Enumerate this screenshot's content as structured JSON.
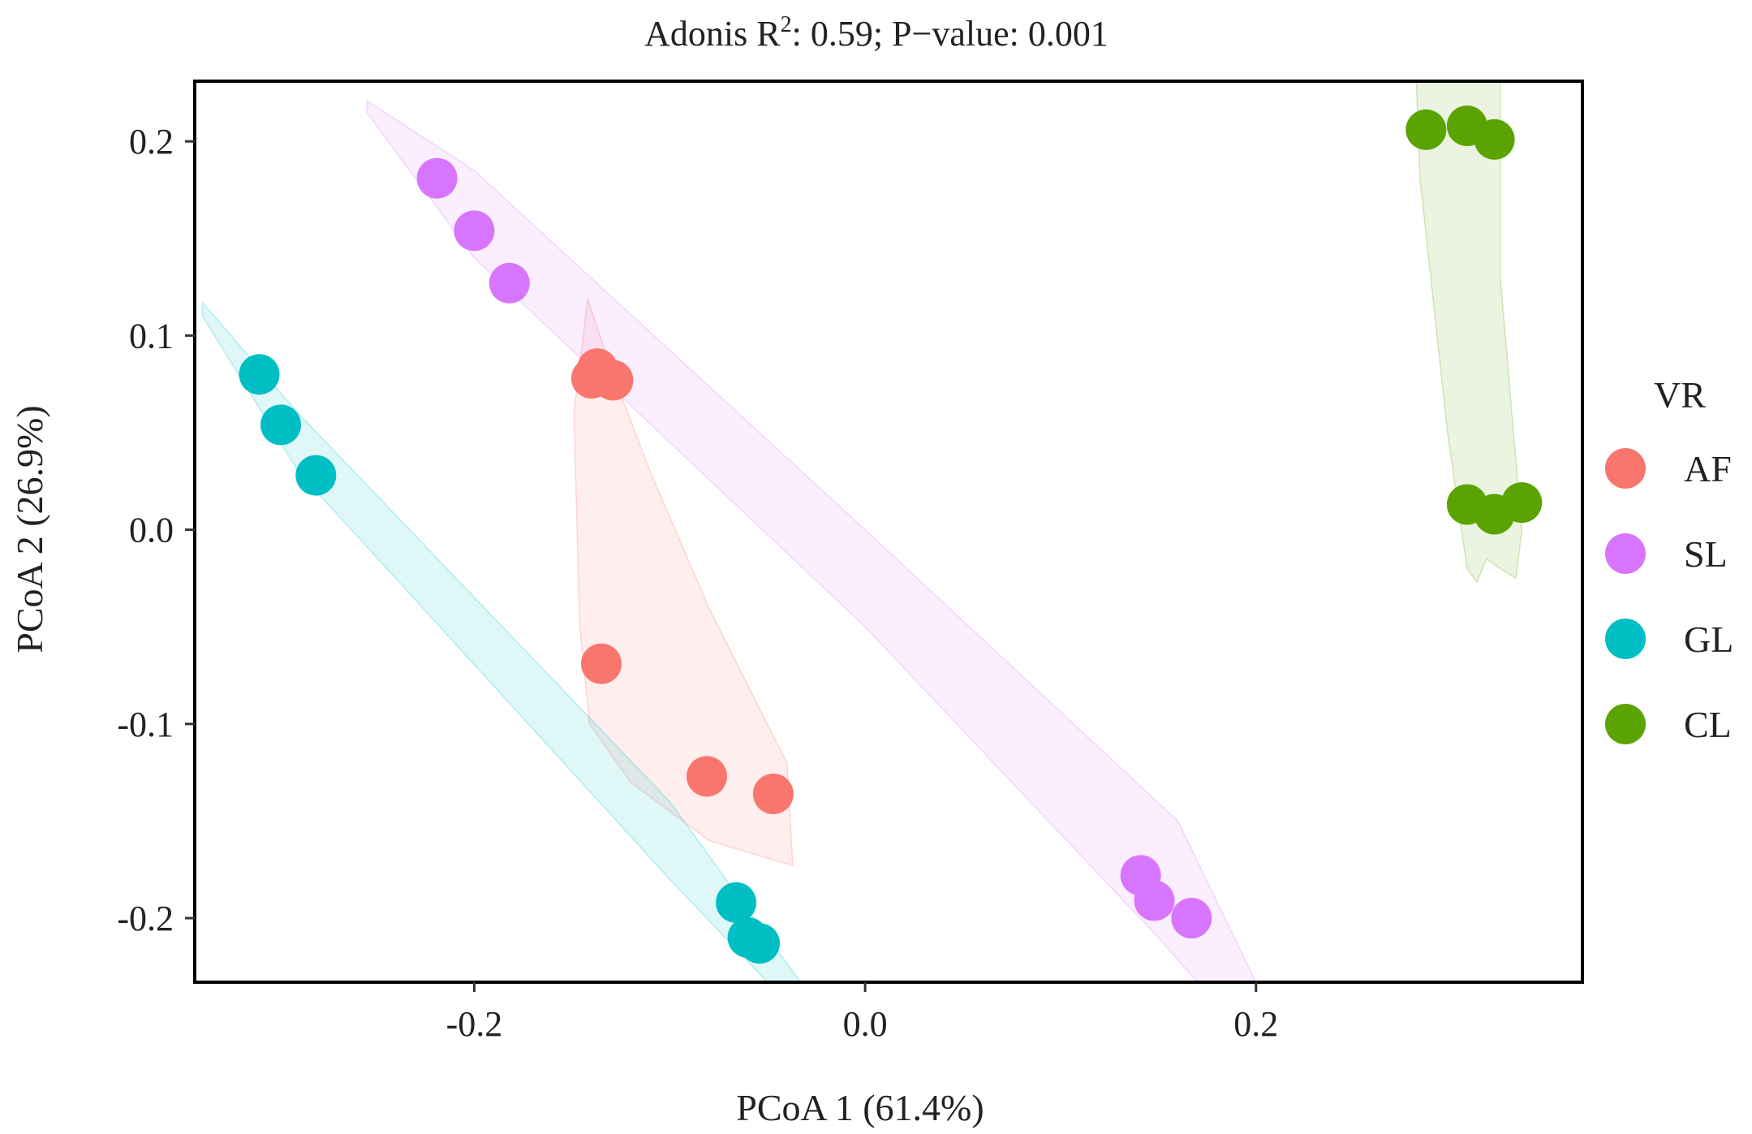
{
  "chart_data": {
    "type": "scatter",
    "title": "Adonis R",
    "title_sup": "2",
    "title_rest": ": 0.59; P−value: 0.001",
    "xlabel": "PCoA 1 (61.4%)",
    "ylabel": "PCoA 2 (26.9%)",
    "xlim": [
      -0.343,
      0.367
    ],
    "ylim": [
      -0.233,
      0.231
    ],
    "x_ticks": [
      -0.2,
      0.0,
      0.2
    ],
    "x_tick_labels": [
      "-0.2",
      "0.0",
      "0.2"
    ],
    "y_ticks": [
      -0.2,
      -0.1,
      0.0,
      0.1,
      0.2
    ],
    "y_tick_labels": [
      "-0.2",
      "-0.1",
      "0.0",
      "0.1",
      "0.2"
    ],
    "grid": false,
    "legend": {
      "title": "VR",
      "position": "right"
    },
    "series": [
      {
        "name": "AF",
        "color": "#F8766D",
        "points": [
          [
            -0.137,
            0.083
          ],
          [
            -0.14,
            0.078
          ],
          [
            -0.129,
            0.077
          ],
          [
            -0.135,
            -0.069
          ],
          [
            -0.081,
            -0.127
          ],
          [
            -0.047,
            -0.136
          ]
        ],
        "ellipse": [
          [
            -0.142,
            0.119
          ],
          [
            -0.149,
            0.06
          ],
          [
            -0.146,
            -0.05
          ],
          [
            -0.141,
            -0.1
          ],
          [
            -0.12,
            -0.13
          ],
          [
            -0.08,
            -0.16
          ],
          [
            -0.037,
            -0.173
          ],
          [
            -0.04,
            -0.12
          ],
          [
            -0.08,
            -0.04
          ],
          [
            -0.11,
            0.03
          ],
          [
            -0.129,
            0.08
          ]
        ]
      },
      {
        "name": "SL",
        "color": "#D875FF",
        "points": [
          [
            -0.219,
            0.181
          ],
          [
            -0.2,
            0.154
          ],
          [
            -0.182,
            0.127
          ],
          [
            0.141,
            -0.178
          ],
          [
            0.148,
            -0.191
          ],
          [
            0.167,
            -0.2
          ]
        ],
        "ellipse": [
          [
            -0.255,
            0.221
          ],
          [
            -0.2,
            0.185
          ],
          [
            0.0,
            0.0
          ],
          [
            0.16,
            -0.15
          ],
          [
            0.2,
            -0.233
          ],
          [
            0.17,
            -0.233
          ],
          [
            0.15,
            -0.21
          ],
          [
            0.0,
            -0.05
          ],
          [
            -0.2,
            0.14
          ],
          [
            -0.255,
            0.215
          ]
        ]
      },
      {
        "name": "GL",
        "color": "#00BFC4",
        "points": [
          [
            -0.31,
            0.08
          ],
          [
            -0.299,
            0.054
          ],
          [
            -0.281,
            0.028
          ],
          [
            -0.066,
            -0.192
          ],
          [
            -0.06,
            -0.21
          ],
          [
            -0.054,
            -0.213
          ]
        ],
        "ellipse": [
          [
            -0.339,
            0.117
          ],
          [
            -0.29,
            0.06
          ],
          [
            -0.1,
            -0.14
          ],
          [
            -0.033,
            -0.233
          ],
          [
            -0.05,
            -0.233
          ],
          [
            -0.1,
            -0.18
          ],
          [
            -0.29,
            0.03
          ],
          [
            -0.339,
            0.11
          ]
        ]
      },
      {
        "name": "CL",
        "color": "#5BA300",
        "points": [
          [
            0.287,
            0.206
          ],
          [
            0.308,
            0.208
          ],
          [
            0.322,
            0.201
          ],
          [
            0.308,
            0.013
          ],
          [
            0.322,
            0.008
          ],
          [
            0.336,
            0.014
          ]
        ],
        "ellipse": [
          [
            0.282,
            0.231
          ],
          [
            0.325,
            0.231
          ],
          [
            0.325,
            0.13
          ],
          [
            0.336,
            0.0
          ],
          [
            0.333,
            -0.025
          ],
          [
            0.325,
            -0.02
          ],
          [
            0.318,
            -0.015
          ],
          [
            0.313,
            -0.027
          ],
          [
            0.308,
            -0.02
          ],
          [
            0.298,
            0.05
          ],
          [
            0.284,
            0.18
          ]
        ]
      }
    ]
  }
}
